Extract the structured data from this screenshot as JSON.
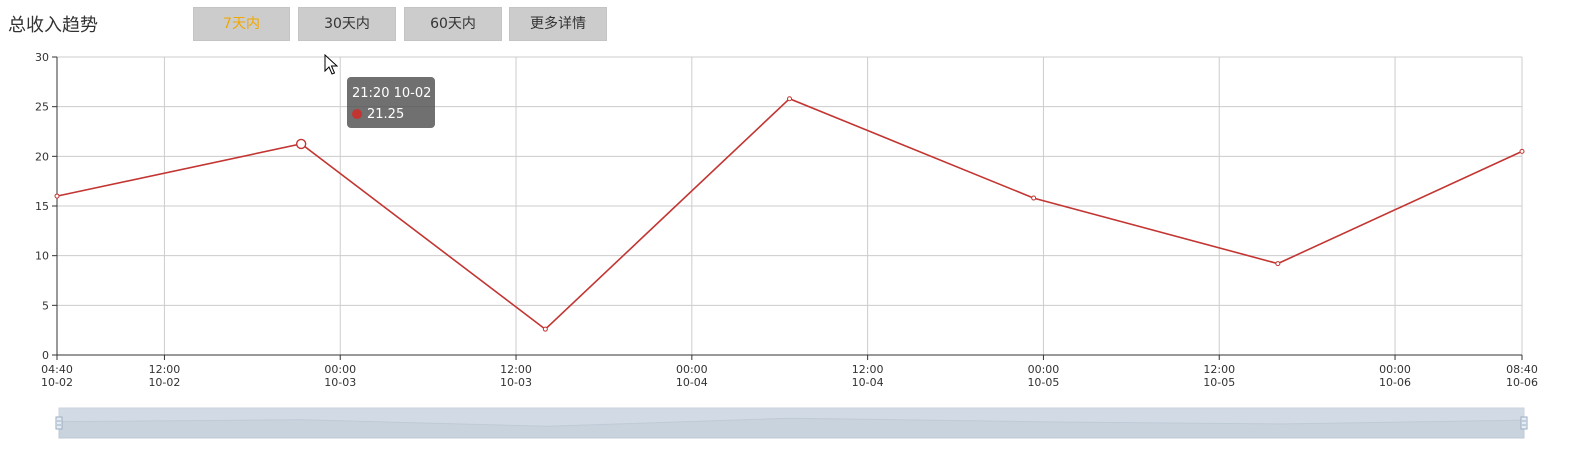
{
  "header": {
    "title": "总收入趋势",
    "buttons": [
      {
        "label": "7天内",
        "active": true
      },
      {
        "label": "30天内",
        "active": false
      },
      {
        "label": "60天内",
        "active": false
      },
      {
        "label": "更多详情",
        "active": false
      }
    ]
  },
  "colors": {
    "series": "#c23531",
    "active_button_text": "#f0a800",
    "button_bg": "#cccccc",
    "grid": "#cccccc",
    "datazoom_fill": "#d2dbe5"
  },
  "tooltip": {
    "time": "21:20 10-02",
    "value": "21.25"
  },
  "chart_data": {
    "type": "line",
    "grid": true,
    "ylim": [
      0,
      30
    ],
    "yticks": [
      "0",
      "5",
      "10",
      "15",
      "20",
      "25",
      "30"
    ],
    "xlim": [
      "2018-10-02 04:40",
      "2018-10-06 08:40"
    ],
    "xticks": [
      {
        "time": "04:40",
        "date": "10-02"
      },
      {
        "time": "12:00",
        "date": "10-02"
      },
      {
        "time": "00:00",
        "date": "10-03"
      },
      {
        "time": "12:00",
        "date": "10-03"
      },
      {
        "time": "00:00",
        "date": "10-04"
      },
      {
        "time": "12:00",
        "date": "10-04"
      },
      {
        "time": "00:00",
        "date": "10-05"
      },
      {
        "time": "12:00",
        "date": "10-05"
      },
      {
        "time": "00:00",
        "date": "10-06"
      },
      {
        "time": "08:40",
        "date": "10-06"
      }
    ],
    "series": [
      {
        "points": [
          {
            "x": "2018-10-02 04:40",
            "y": 16.0
          },
          {
            "x": "2018-10-02 21:20",
            "y": 21.25
          },
          {
            "x": "2018-10-03 14:00",
            "y": 2.6
          },
          {
            "x": "2018-10-04 06:40",
            "y": 25.8
          },
          {
            "x": "2018-10-04 23:20",
            "y": 15.8
          },
          {
            "x": "2018-10-05 16:00",
            "y": 9.2
          },
          {
            "x": "2018-10-06 08:40",
            "y": 20.5
          }
        ]
      }
    ],
    "highlighted_point": {
      "x": "2018-10-02 21:20",
      "y": 21.25
    },
    "datazoom": {
      "start_percent": 0,
      "end_percent": 100
    }
  }
}
